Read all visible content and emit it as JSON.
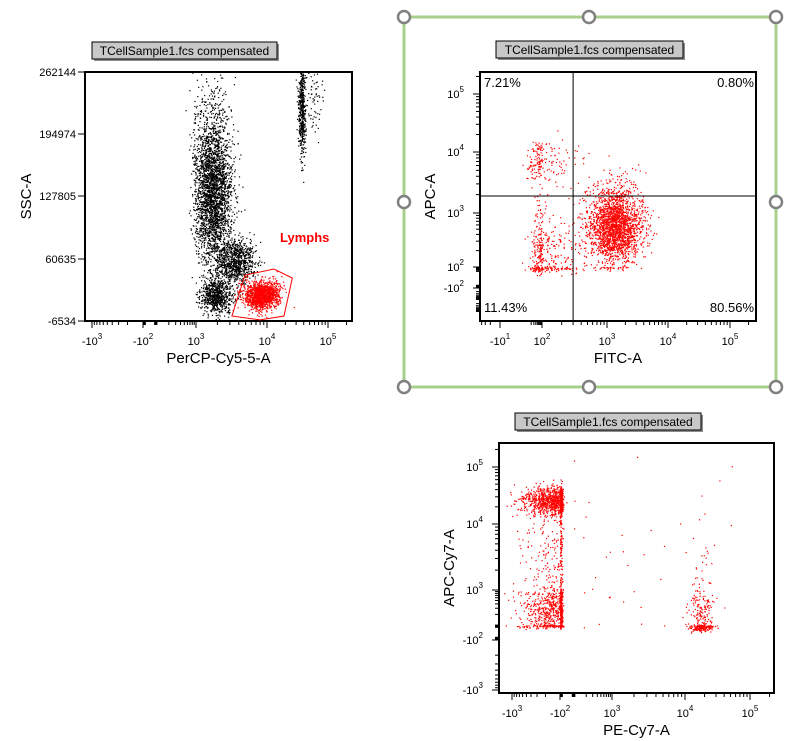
{
  "colors": {
    "events_ungated": "#000000",
    "events_gated": "#ff0000",
    "gate": "#ff0000",
    "selection_frame": "#a8d08d",
    "handle": "#808080",
    "title_bg": "#c8c8c8"
  },
  "chart_data": [
    {
      "type": "scatter",
      "title": "TCellSample1.fcs compensated",
      "xlabel": "PerCP-Cy5-5-A",
      "ylabel": "SSC-A",
      "x_scale": "biexponential",
      "y_scale": "linear",
      "xlim": [
        -2000,
        250000
      ],
      "ylim": [
        -6534,
        262144
      ],
      "x_ticks": [
        {
          "base": "-10",
          "exp": "3",
          "value": -1000
        },
        {
          "base": "-10",
          "exp": "2",
          "value": -100
        },
        {
          "base": "10",
          "exp": "3",
          "value": 1000
        },
        {
          "base": "10",
          "exp": "4",
          "value": 10000
        },
        {
          "base": "10",
          "exp": "5",
          "value": 100000
        }
      ],
      "y_ticks": [
        {
          "label": "262144",
          "value": 262144
        },
        {
          "label": "194974",
          "value": 194974
        },
        {
          "label": "127805",
          "value": 127805
        },
        {
          "label": "60635",
          "value": 60635
        },
        {
          "label": "-6534",
          "value": -6534
        }
      ],
      "gate": {
        "name": "Lymphs",
        "type": "polygon",
        "vertices": [
          [
            4900,
            43000
          ],
          [
            13000,
            49600
          ],
          [
            26000,
            39900
          ],
          [
            19000,
            -1100
          ],
          [
            8000,
            -5400
          ],
          [
            3200,
            -1100
          ]
        ]
      },
      "populations": [
        {
          "x": 1700,
          "y": 130000,
          "x_spread_decades": 0.13,
          "y_spread": 38000,
          "count": 2600,
          "color": "#000000"
        },
        {
          "x": 3500,
          "y": 58000,
          "x_spread_decades": 0.14,
          "y_spread": 12000,
          "count": 900,
          "color": "#000000"
        },
        {
          "x": 1900,
          "y": 20000,
          "x_spread_decades": 0.12,
          "y_spread": 9000,
          "count": 700,
          "color": "#000000"
        },
        {
          "x": 1600,
          "y": 200000,
          "x_spread_decades": 0.15,
          "y_spread": 30000,
          "count": 300,
          "color": "#000000"
        },
        {
          "x": 37000,
          "y": 225000,
          "x_spread_decades": 0.03,
          "y_spread": 28000,
          "count": 500,
          "color": "#000000"
        },
        {
          "x": 60000,
          "y": 235000,
          "x_spread_decades": 0.06,
          "y_spread": 20000,
          "count": 60,
          "color": "#000000"
        },
        {
          "x": 8500,
          "y": 22000,
          "x_spread_decades": 0.13,
          "y_spread": 7500,
          "count": 1400,
          "color": "#ff0000"
        }
      ]
    },
    {
      "type": "scatter",
      "title": "TCellSample1.fcs compensated",
      "xlabel": "FITC-A",
      "ylabel": "APC-A",
      "x_scale": "biexponential",
      "y_scale": "biexponential",
      "x_ticks": [
        {
          "base": "-10",
          "exp": "1",
          "value": -10
        },
        {
          "base": "10",
          "exp": "2",
          "value": 100
        },
        {
          "base": "10",
          "exp": "3",
          "value": 1000
        },
        {
          "base": "10",
          "exp": "4",
          "value": 10000
        },
        {
          "base": "10",
          "exp": "5",
          "value": 100000
        }
      ],
      "y_ticks": [
        {
          "base": "10",
          "exp": "5",
          "value": 100000
        },
        {
          "base": "10",
          "exp": "4",
          "value": 10000
        },
        {
          "base": "10",
          "exp": "3",
          "value": 1000
        },
        {
          "base": "10",
          "exp": "2",
          "value": 100
        },
        {
          "base": "-10",
          "exp": "2",
          "value": -100
        }
      ],
      "quadrant_gate": {
        "x": 300,
        "y": 1900
      },
      "quadrants": [
        {
          "position": "top-left",
          "value": "7.21%"
        },
        {
          "position": "top-right",
          "value": "0.80%"
        },
        {
          "position": "bottom-left",
          "value": "11.43%"
        },
        {
          "position": "bottom-right",
          "value": "80.56%"
        }
      ],
      "populations": [
        {
          "x": 1350,
          "y": 600,
          "x_spread_decades": 0.22,
          "y_spread_decades": 0.35,
          "count": 2200,
          "color": "#ff0000"
        },
        {
          "x": 90,
          "y": 170,
          "x_spread_decades": 0.35,
          "y_spread_decades": 0.45,
          "count": 400,
          "color": "#ff0000"
        },
        {
          "x": 70,
          "y": 7000,
          "x_spread_decades": 0.35,
          "y_spread_decades": 0.18,
          "count": 170,
          "color": "#ff0000"
        }
      ]
    },
    {
      "type": "scatter",
      "title": "TCellSample1.fcs compensated",
      "xlabel": "PE-Cy7-A",
      "ylabel": "APC-Cy7-A",
      "x_scale": "biexponential",
      "y_scale": "biexponential",
      "x_ticks": [
        {
          "base": "-10",
          "exp": "3",
          "value": -1000
        },
        {
          "base": "-10",
          "exp": "2",
          "value": -100
        },
        {
          "base": "10",
          "exp": "3",
          "value": 1000
        },
        {
          "base": "10",
          "exp": "4",
          "value": 10000
        },
        {
          "base": "10",
          "exp": "5",
          "value": 100000
        }
      ],
      "y_ticks": [
        {
          "base": "10",
          "exp": "5",
          "value": 100000
        },
        {
          "base": "10",
          "exp": "4",
          "value": 10000
        },
        {
          "base": "10",
          "exp": "3",
          "value": 1000
        },
        {
          "base": "-10",
          "exp": "2",
          "value": -100
        },
        {
          "base": "-10",
          "exp": "3",
          "value": -1000
        }
      ],
      "populations": [
        {
          "x": -130,
          "y": 26000,
          "x_spread_decades": 0.35,
          "y_spread_decades": 0.12,
          "count": 1100,
          "color": "#ff0000"
        },
        {
          "x": -130,
          "y": 5000,
          "x_spread_decades": 0.35,
          "y_spread_decades": 0.35,
          "count": 200,
          "color": "#ff0000"
        },
        {
          "x": -130,
          "y": 250,
          "x_spread_decades": 0.35,
          "y_spread_decades": 0.45,
          "count": 800,
          "color": "#ff0000"
        },
        {
          "x": 18000,
          "y": 80,
          "x_spread_decades": 0.1,
          "y_spread_decades": 0.8,
          "count": 330,
          "color": "#ff0000"
        },
        {
          "x": 2000,
          "y": 3000,
          "x_spread_decades": 0.8,
          "y_spread_decades": 1.0,
          "count": 40,
          "color": "#ff0000"
        }
      ]
    }
  ]
}
